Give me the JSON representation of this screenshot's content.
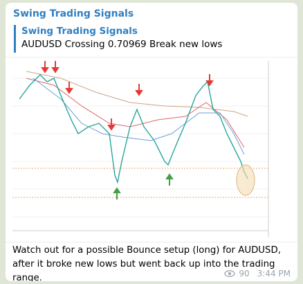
{
  "message": {
    "sender": "Swing Trading Signals",
    "quote": {
      "title": "Swing Trading Signals",
      "text": "AUDUSD Crossing 0.70969 Break new lows"
    },
    "caption": "Watch out for a possible Bounce setup (long) for AUDUSD, after it broke new lows but went back up into the trading range.",
    "views": 90,
    "time": "3:44 PM"
  }
}
